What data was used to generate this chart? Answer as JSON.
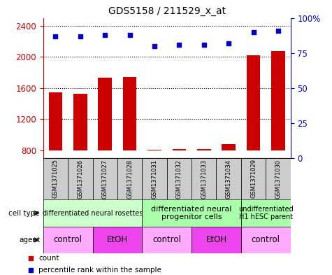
{
  "title": "GDS5158 / 211529_x_at",
  "samples": [
    "GSM1371025",
    "GSM1371026",
    "GSM1371027",
    "GSM1371028",
    "GSM1371031",
    "GSM1371032",
    "GSM1371033",
    "GSM1371034",
    "GSM1371029",
    "GSM1371030"
  ],
  "counts": [
    1540,
    1530,
    1730,
    1740,
    810,
    820,
    820,
    880,
    2020,
    2070
  ],
  "percentiles": [
    87,
    87,
    88,
    88,
    80,
    81,
    81,
    82,
    90,
    91
  ],
  "ylim_left": [
    700,
    2500
  ],
  "ylim_right": [
    0,
    100
  ],
  "yticks_left": [
    800,
    1200,
    1600,
    2000,
    2400
  ],
  "yticks_right": [
    0,
    25,
    50,
    75,
    100
  ],
  "bar_color": "#cc0000",
  "dot_color": "#0000cc",
  "bar_bottom": 800,
  "ct_spans": [
    [
      0,
      4,
      "differentiated neural rosettes",
      "#ccffcc",
      7
    ],
    [
      4,
      8,
      "differentiated neural\nprogenitor cells",
      "#aaffaa",
      8
    ],
    [
      8,
      10,
      "undifferentiated\nH1 hESC parent",
      "#aaffaa",
      7
    ]
  ],
  "agent_spans": [
    [
      0,
      2,
      "control",
      "#ffaaff"
    ],
    [
      2,
      4,
      "EtOH",
      "#ee44ee"
    ],
    [
      4,
      6,
      "control",
      "#ffaaff"
    ],
    [
      6,
      8,
      "EtOH",
      "#ee44ee"
    ],
    [
      8,
      10,
      "control",
      "#ffaaff"
    ]
  ],
  "tick_color_left": "#cc0000",
  "tick_color_right": "#0000cc",
  "gray_col": "#cccccc",
  "grid_lines": [
    1200,
    1600,
    2000,
    2400
  ],
  "ytick_labels_right": [
    "0",
    "25",
    "50",
    "75",
    "100%"
  ]
}
